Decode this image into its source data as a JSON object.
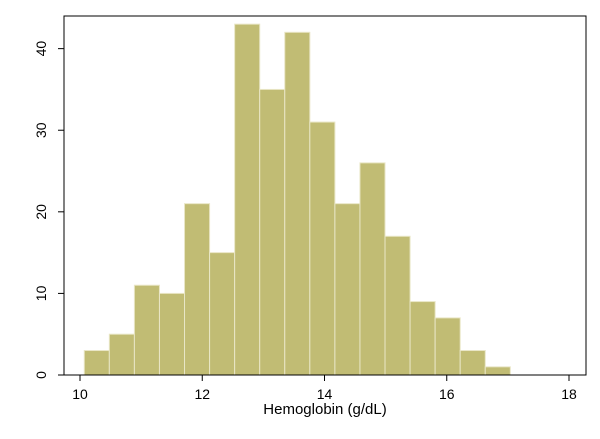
{
  "chart_data": {
    "type": "bar",
    "subtype": "histogram",
    "xlabel": "Hemoglobin (g/dL)",
    "ylabel": "",
    "xlim": [
      10,
      18
    ],
    "ylim": [
      0,
      44
    ],
    "xticks": [
      10,
      12,
      14,
      16,
      18
    ],
    "yticks": [
      0,
      10,
      20,
      30,
      40
    ],
    "grid": false,
    "legend": "none",
    "bar_color": "#c1bc74",
    "bar_edge_color": "#e9e6c6",
    "bins": [
      {
        "start": 10.07,
        "end": 10.48,
        "count": 3
      },
      {
        "start": 10.48,
        "end": 10.89,
        "count": 5
      },
      {
        "start": 10.89,
        "end": 11.3,
        "count": 11
      },
      {
        "start": 11.3,
        "end": 11.71,
        "count": 10
      },
      {
        "start": 11.71,
        "end": 12.12,
        "count": 21
      },
      {
        "start": 12.12,
        "end": 12.53,
        "count": 15
      },
      {
        "start": 12.53,
        "end": 12.94,
        "count": 43
      },
      {
        "start": 12.94,
        "end": 13.35,
        "count": 35
      },
      {
        "start": 13.35,
        "end": 13.76,
        "count": 42
      },
      {
        "start": 13.76,
        "end": 14.17,
        "count": 31
      },
      {
        "start": 14.17,
        "end": 14.58,
        "count": 21
      },
      {
        "start": 14.58,
        "end": 14.99,
        "count": 26
      },
      {
        "start": 14.99,
        "end": 15.4,
        "count": 17
      },
      {
        "start": 15.4,
        "end": 15.81,
        "count": 9
      },
      {
        "start": 15.81,
        "end": 16.22,
        "count": 7
      },
      {
        "start": 16.22,
        "end": 16.63,
        "count": 3
      },
      {
        "start": 16.63,
        "end": 17.04,
        "count": 1
      }
    ]
  }
}
